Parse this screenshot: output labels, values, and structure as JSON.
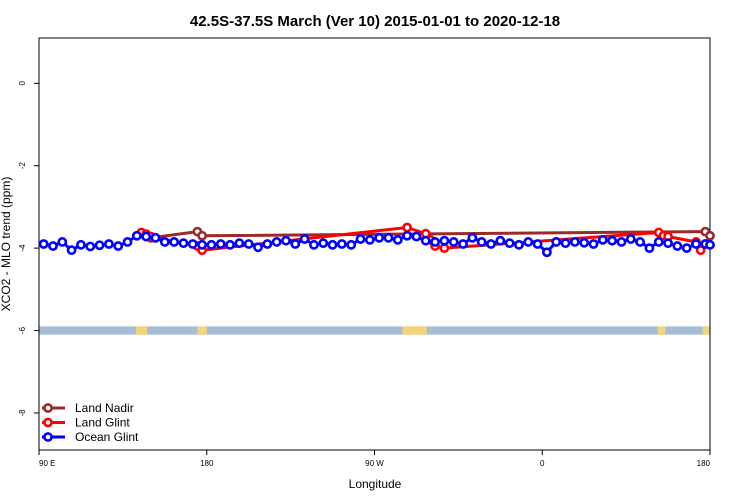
{
  "chart_data": {
    "type": "line",
    "title": "42.5S-37.5S March (Ver 10)   2015-01-01 to 2020-12-18",
    "xlabel": "Longitude",
    "ylabel": "XCO2 - MLO trend (ppm)",
    "xlim": [
      90,
      450
    ],
    "ylim": [
      -8.9,
      1.1
    ],
    "x_ticks": [
      {
        "value": 90,
        "label": "90 E"
      },
      {
        "value": 180,
        "label": "180"
      },
      {
        "value": 270,
        "label": "90 W"
      },
      {
        "value": 360,
        "label": "0"
      },
      {
        "value": 450,
        "label": "180"
      }
    ],
    "y_ticks": [
      {
        "value": 0,
        "label": "0"
      },
      {
        "value": -2,
        "label": "-2"
      },
      {
        "value": -4,
        "label": "-4"
      },
      {
        "value": -6,
        "label": "-6"
      },
      {
        "value": -8,
        "label": "-8"
      }
    ],
    "grid": false,
    "legend": "bottom-left",
    "series": [
      {
        "name": "Land Nadir",
        "color": "#9b2a2a",
        "x": [
          145,
          150,
          175,
          177.5,
          447.5,
          450
        ],
        "y": [
          -3.65,
          -3.75,
          -3.6,
          -3.7,
          -3.6,
          -3.7
        ]
      },
      {
        "name": "Land Glint",
        "color": "#ff0000",
        "x": [
          145,
          147.5,
          150,
          152.5,
          175,
          177.5,
          287.5,
          297.5,
          300,
          302.5,
          307.5,
          422.5,
          425,
          427.5,
          442.5,
          445,
          447.5
        ],
        "y": [
          -3.62,
          -3.66,
          -3.72,
          -3.75,
          -3.95,
          -4.05,
          -3.5,
          -3.65,
          -3.8,
          -3.95,
          -4.0,
          -3.62,
          -3.7,
          -3.72,
          -3.85,
          -4.05,
          -3.9
        ]
      },
      {
        "name": "Ocean Glint",
        "color": "#0000ff",
        "x": [
          92.5,
          97.5,
          102.5,
          107.5,
          112.5,
          117.5,
          122.5,
          127.5,
          132.5,
          137.5,
          142.5,
          147.5,
          152.5,
          157.5,
          162.5,
          167.5,
          172.5,
          177.5,
          182.5,
          187.5,
          192.5,
          197.5,
          202.5,
          207.5,
          212.5,
          217.5,
          222.5,
          227.5,
          232.5,
          237.5,
          242.5,
          247.5,
          252.5,
          257.5,
          262.5,
          267.5,
          272.5,
          277.5,
          282.5,
          287.5,
          292.5,
          297.5,
          302.5,
          307.5,
          312.5,
          317.5,
          322.5,
          327.5,
          332.5,
          337.5,
          342.5,
          347.5,
          352.5,
          357.5,
          362.5,
          367.5,
          372.5,
          377.5,
          382.5,
          387.5,
          392.5,
          397.5,
          402.5,
          407.5,
          412.5,
          417.5,
          422.5,
          427.5,
          432.5,
          437.5,
          442.5,
          447.5,
          450
        ],
        "y": [
          -3.9,
          -3.95,
          -3.85,
          -4.05,
          -3.92,
          -3.96,
          -3.93,
          -3.9,
          -3.95,
          -3.85,
          -3.7,
          -3.72,
          -3.75,
          -3.85,
          -3.85,
          -3.88,
          -3.9,
          -3.92,
          -3.92,
          -3.9,
          -3.92,
          -3.88,
          -3.9,
          -3.98,
          -3.9,
          -3.85,
          -3.82,
          -3.9,
          -3.78,
          -3.92,
          -3.88,
          -3.92,
          -3.9,
          -3.92,
          -3.78,
          -3.8,
          -3.75,
          -3.75,
          -3.8,
          -3.7,
          -3.72,
          -3.82,
          -3.85,
          -3.82,
          -3.85,
          -3.9,
          -3.75,
          -3.85,
          -3.9,
          -3.82,
          -3.88,
          -3.92,
          -3.85,
          -3.9,
          -4.1,
          -3.85,
          -3.88,
          -3.85,
          -3.87,
          -3.9,
          -3.8,
          -3.82,
          -3.85,
          -3.78,
          -3.85,
          -4.0,
          -3.85,
          -3.88,
          -3.95,
          -4.0,
          -3.9,
          -3.9,
          -3.92
        ]
      }
    ],
    "band": {
      "y_range": [
        -6.1,
        -5.9
      ],
      "color": "#a7bcd8",
      "highlight_color": "#f5d37b",
      "highlights": [
        [
          142,
          148
        ],
        [
          175,
          180
        ],
        [
          285,
          298
        ],
        [
          422,
          426
        ],
        [
          446,
          450
        ]
      ]
    }
  }
}
